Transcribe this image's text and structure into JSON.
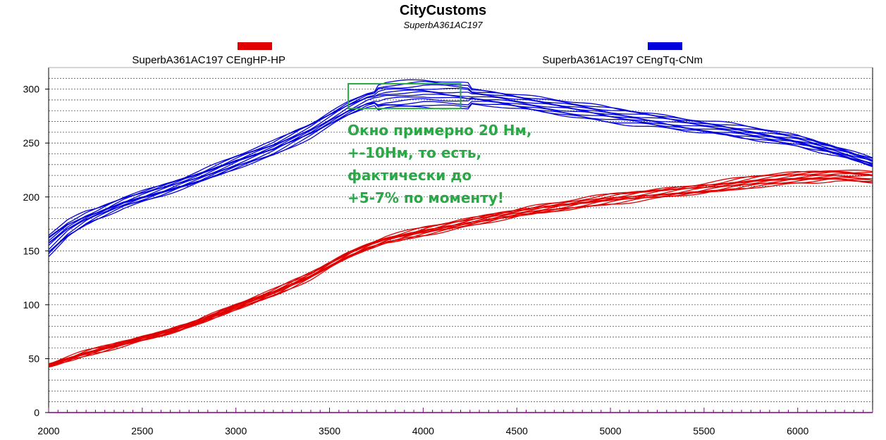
{
  "chart_data": {
    "type": "line",
    "title": "CityCustoms",
    "subtitle": "SuperbA361AC197",
    "xlim": [
      2000,
      6400
    ],
    "ylim": [
      0,
      320
    ],
    "x_ticks": [
      2000,
      2500,
      3000,
      3500,
      4000,
      4500,
      5000,
      5500,
      6000
    ],
    "y_ticks": [
      0,
      50,
      100,
      150,
      200,
      250,
      300
    ],
    "grid": "horizontal",
    "legend_placement": "top",
    "series": [
      {
        "name": "SuperbA361AC197 CEngHP-HP",
        "color": "#e00000",
        "x": [
          2000,
          2200,
          2400,
          2600,
          2800,
          3000,
          3200,
          3400,
          3600,
          3700,
          3800,
          4000,
          4200,
          4400,
          4600,
          4800,
          5000,
          5200,
          5400,
          5600,
          5800,
          6000,
          6200,
          6400
        ],
        "y": [
          44,
          55,
          64,
          73,
          84,
          98,
          111,
          127,
          146,
          154,
          160,
          168,
          175,
          182,
          188,
          193,
          198,
          202,
          206,
          210,
          215,
          218,
          220,
          218
        ],
        "runs": 12
      },
      {
        "name": "SuperbA361AC197 CEngTq-CNm",
        "color": "#0000dd",
        "x": [
          2000,
          2100,
          2200,
          2400,
          2600,
          2800,
          3000,
          3200,
          3400,
          3600,
          3700,
          3800,
          4000,
          4200,
          4400,
          4600,
          4800,
          5000,
          5200,
          5400,
          5600,
          5800,
          6000,
          6200,
          6400
        ],
        "y": [
          155,
          170,
          180,
          195,
          206,
          218,
          232,
          245,
          262,
          282,
          290,
          294,
          296,
          294,
          291,
          286,
          281,
          276,
          272,
          267,
          263,
          258,
          252,
          243,
          232
        ],
        "runs": 12
      }
    ],
    "annotation": {
      "box_x": [
        3600,
        4200
      ],
      "box_y": [
        282,
        305
      ],
      "color": "#2aa846",
      "lines": [
        "Окно примерно 20 Нм,",
        "+-10Нм, то есть,",
        "фактически до",
        "+5-7% по моменту!"
      ]
    }
  }
}
